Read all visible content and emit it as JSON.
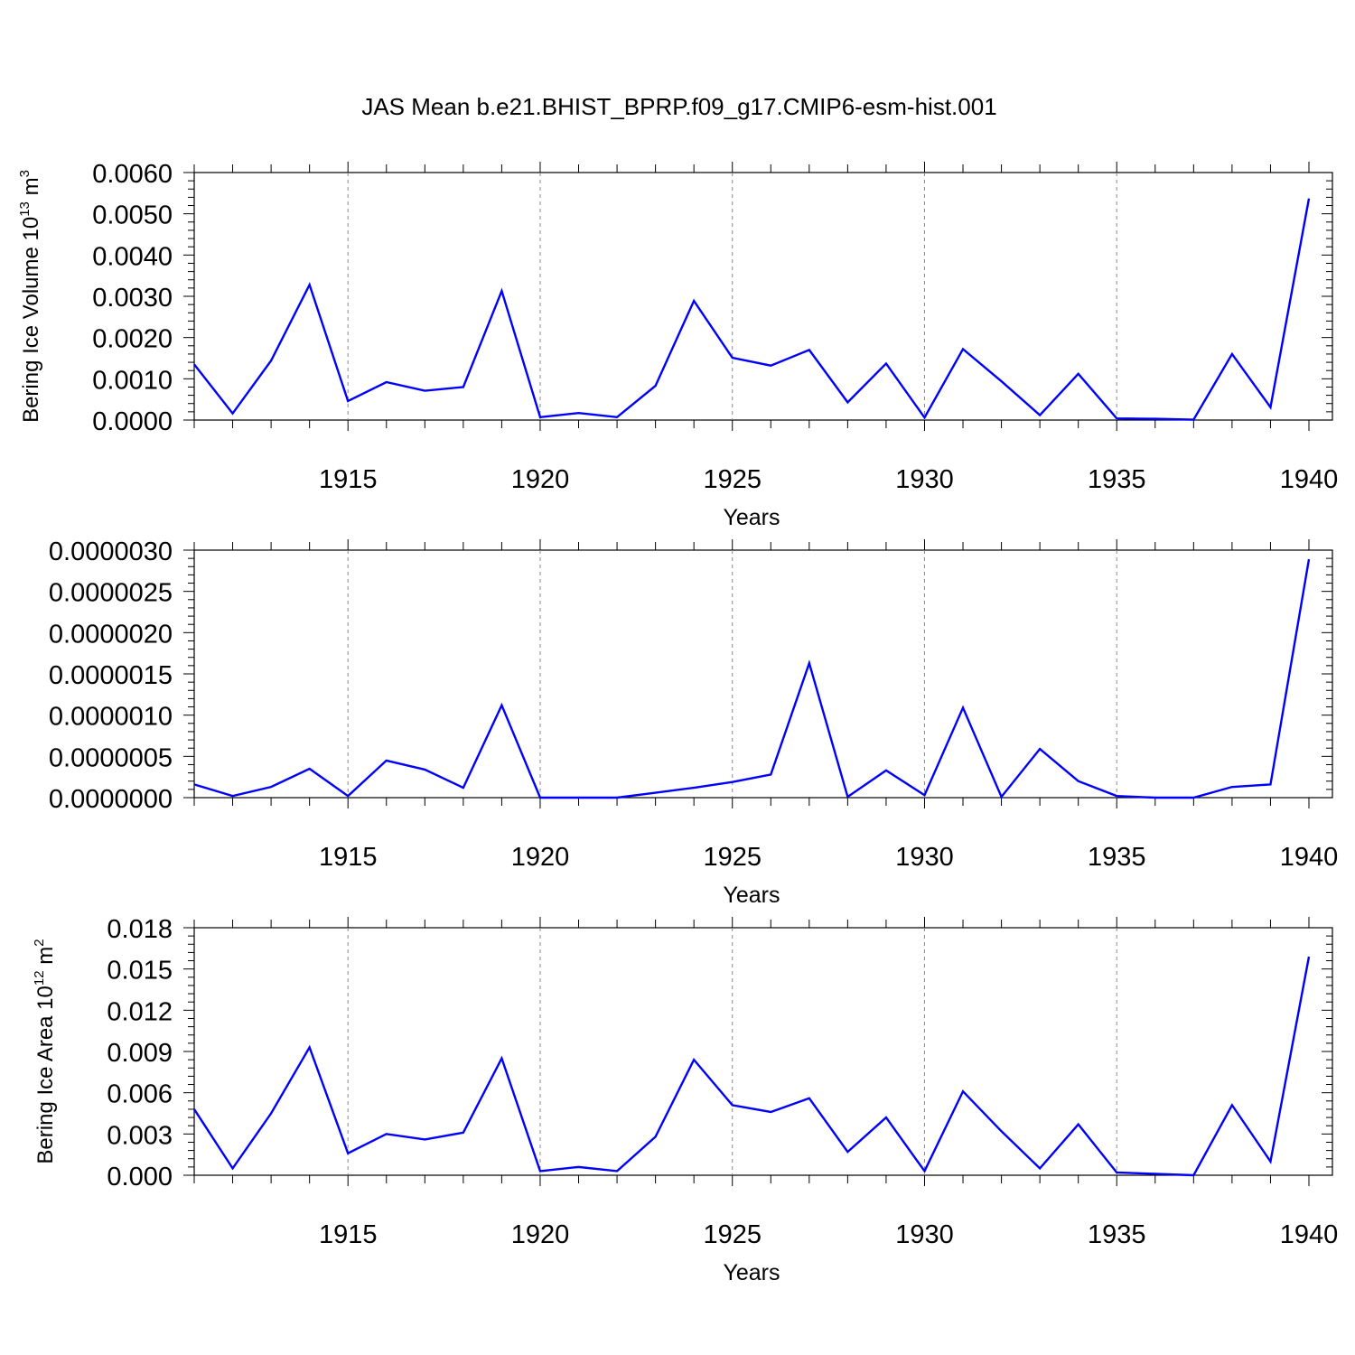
{
  "title": "JAS Mean b.e21.BHIST_BPRP.f09_g17.CMIP6-esm-hist.001",
  "chart_data": [
    {
      "type": "line",
      "title": "JAS Mean b.e21.BHIST_BPRP.f09_g17.CMIP6-esm-hist.001",
      "xlabel": "Years",
      "ylabel": {
        "text": "Bering Ice Volume 10",
        "sup": "13",
        "unit": " m",
        "unit_sup": "3"
      },
      "xlim": [
        1911,
        1940
      ],
      "ylim": [
        0,
        0.006
      ],
      "xticks": [
        "1915",
        "1920",
        "1925",
        "1930",
        "1935",
        "1940"
      ],
      "yticks": [
        "0.0000",
        "0.0010",
        "0.0020",
        "0.0030",
        "0.0040",
        "0.0050",
        "0.0060"
      ],
      "grid": "vertical dashed at major x ticks",
      "line_color": "#0000ff",
      "x": [
        1911,
        1912,
        1913,
        1914,
        1915,
        1916,
        1917,
        1918,
        1919,
        1920,
        1921,
        1922,
        1923,
        1924,
        1925,
        1926,
        1927,
        1928,
        1929,
        1930,
        1931,
        1932,
        1933,
        1934,
        1935,
        1936,
        1937,
        1938,
        1939,
        1940
      ],
      "values": [
        0.00135,
        0.00016,
        0.00144,
        0.00328,
        0.00046,
        0.00092,
        0.00071,
        0.0008,
        0.00313,
        7e-05,
        0.00017,
        7e-05,
        0.00083,
        0.00289,
        0.00151,
        0.00132,
        0.0017,
        0.00043,
        0.00137,
        6e-05,
        0.00172,
        0.00094,
        0.00012,
        0.00112,
        4e-05,
        3e-05,
        1e-05,
        0.0016,
        0.00031,
        0.00537
      ]
    },
    {
      "type": "line",
      "xlabel": "Years",
      "ylabel": null,
      "xlim": [
        1911,
        1940
      ],
      "ylim": [
        0,
        3e-06
      ],
      "xticks": [
        "1915",
        "1920",
        "1925",
        "1930",
        "1935",
        "1940"
      ],
      "yticks": [
        "0.0000000",
        "0.0000005",
        "0.0000010",
        "0.0000015",
        "0.0000020",
        "0.0000025",
        "0.0000030"
      ],
      "grid": "vertical dashed at major x ticks",
      "line_color": "#0000ff",
      "x": [
        1911,
        1912,
        1913,
        1914,
        1915,
        1916,
        1917,
        1918,
        1919,
        1920,
        1921,
        1922,
        1923,
        1924,
        1925,
        1926,
        1927,
        1928,
        1929,
        1930,
        1931,
        1932,
        1933,
        1934,
        1935,
        1936,
        1937,
        1938,
        1939,
        1940
      ],
      "values": [
        1.6e-07,
        2e-08,
        1.3e-07,
        3.5e-07,
        2e-08,
        4.5e-07,
        3.4e-07,
        1.2e-07,
        1.12e-06,
        0.0,
        0.0,
        0.0,
        6e-08,
        1.2e-07,
        1.9e-07,
        2.8e-07,
        1.63e-06,
        1e-08,
        3.3e-07,
        3e-08,
        1.09e-06,
        1e-08,
        5.9e-07,
        2e-07,
        2e-08,
        0.0,
        0.0,
        1.3e-07,
        1.6e-07,
        2.89e-06
      ]
    },
    {
      "type": "line",
      "xlabel": "Years",
      "ylabel": {
        "text": "Bering Ice Area 10",
        "sup": "12",
        "unit": " m",
        "unit_sup": "2"
      },
      "xlim": [
        1911,
        1940
      ],
      "ylim": [
        0,
        0.018
      ],
      "xticks": [
        "1915",
        "1920",
        "1925",
        "1930",
        "1935",
        "1940"
      ],
      "yticks": [
        "0.000",
        "0.003",
        "0.006",
        "0.009",
        "0.012",
        "0.015",
        "0.018"
      ],
      "grid": "vertical dashed at major x ticks",
      "line_color": "#0000ff",
      "x": [
        1911,
        1912,
        1913,
        1914,
        1915,
        1916,
        1917,
        1918,
        1919,
        1920,
        1921,
        1922,
        1923,
        1924,
        1925,
        1926,
        1927,
        1928,
        1929,
        1930,
        1931,
        1932,
        1933,
        1934,
        1935,
        1936,
        1937,
        1938,
        1939,
        1940
      ],
      "values": [
        0.0048,
        0.0005,
        0.0045,
        0.0093,
        0.0016,
        0.003,
        0.0026,
        0.0031,
        0.0085,
        0.0003,
        0.0006,
        0.0003,
        0.0028,
        0.0084,
        0.0051,
        0.0046,
        0.0056,
        0.0017,
        0.0042,
        0.0003,
        0.0061,
        0.0032,
        0.0005,
        0.0037,
        0.0002,
        0.0001,
        0.0,
        0.0051,
        0.001,
        0.0159
      ]
    }
  ]
}
